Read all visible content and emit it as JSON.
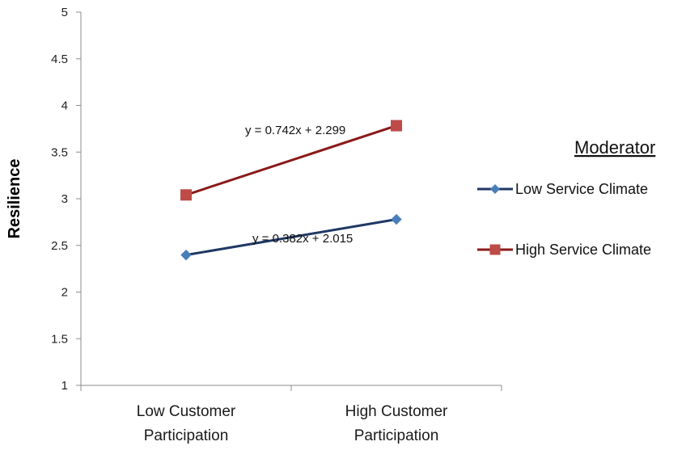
{
  "chart_data": {
    "type": "line",
    "title": "",
    "ylabel": "Resilience",
    "xlabel": "",
    "ylim": [
      1,
      5
    ],
    "ytick_step": 0.5,
    "yticks": [
      "1",
      "1.5",
      "2",
      "2.5",
      "3",
      "3.5",
      "4",
      "4.5",
      "5"
    ],
    "categories": [
      [
        "Low Customer",
        "Participation"
      ],
      [
        "High Customer",
        "Participation"
      ]
    ],
    "grid": false,
    "legend": {
      "title": "Moderator",
      "placement": "right"
    },
    "series": [
      {
        "name": "Low Service Climate",
        "values": [
          2.397,
          2.779
        ],
        "color": "#4a7ebb",
        "line_color": "#1f3864",
        "marker": "diamond",
        "trendline_label": "y = 0.382x + 2.015"
      },
      {
        "name": "High Service Climate",
        "values": [
          3.041,
          3.783
        ],
        "color": "#be4b48",
        "line_color": "#8b1a1a",
        "marker": "square",
        "trendline_label": "y = 0.742x + 2.299"
      }
    ]
  }
}
